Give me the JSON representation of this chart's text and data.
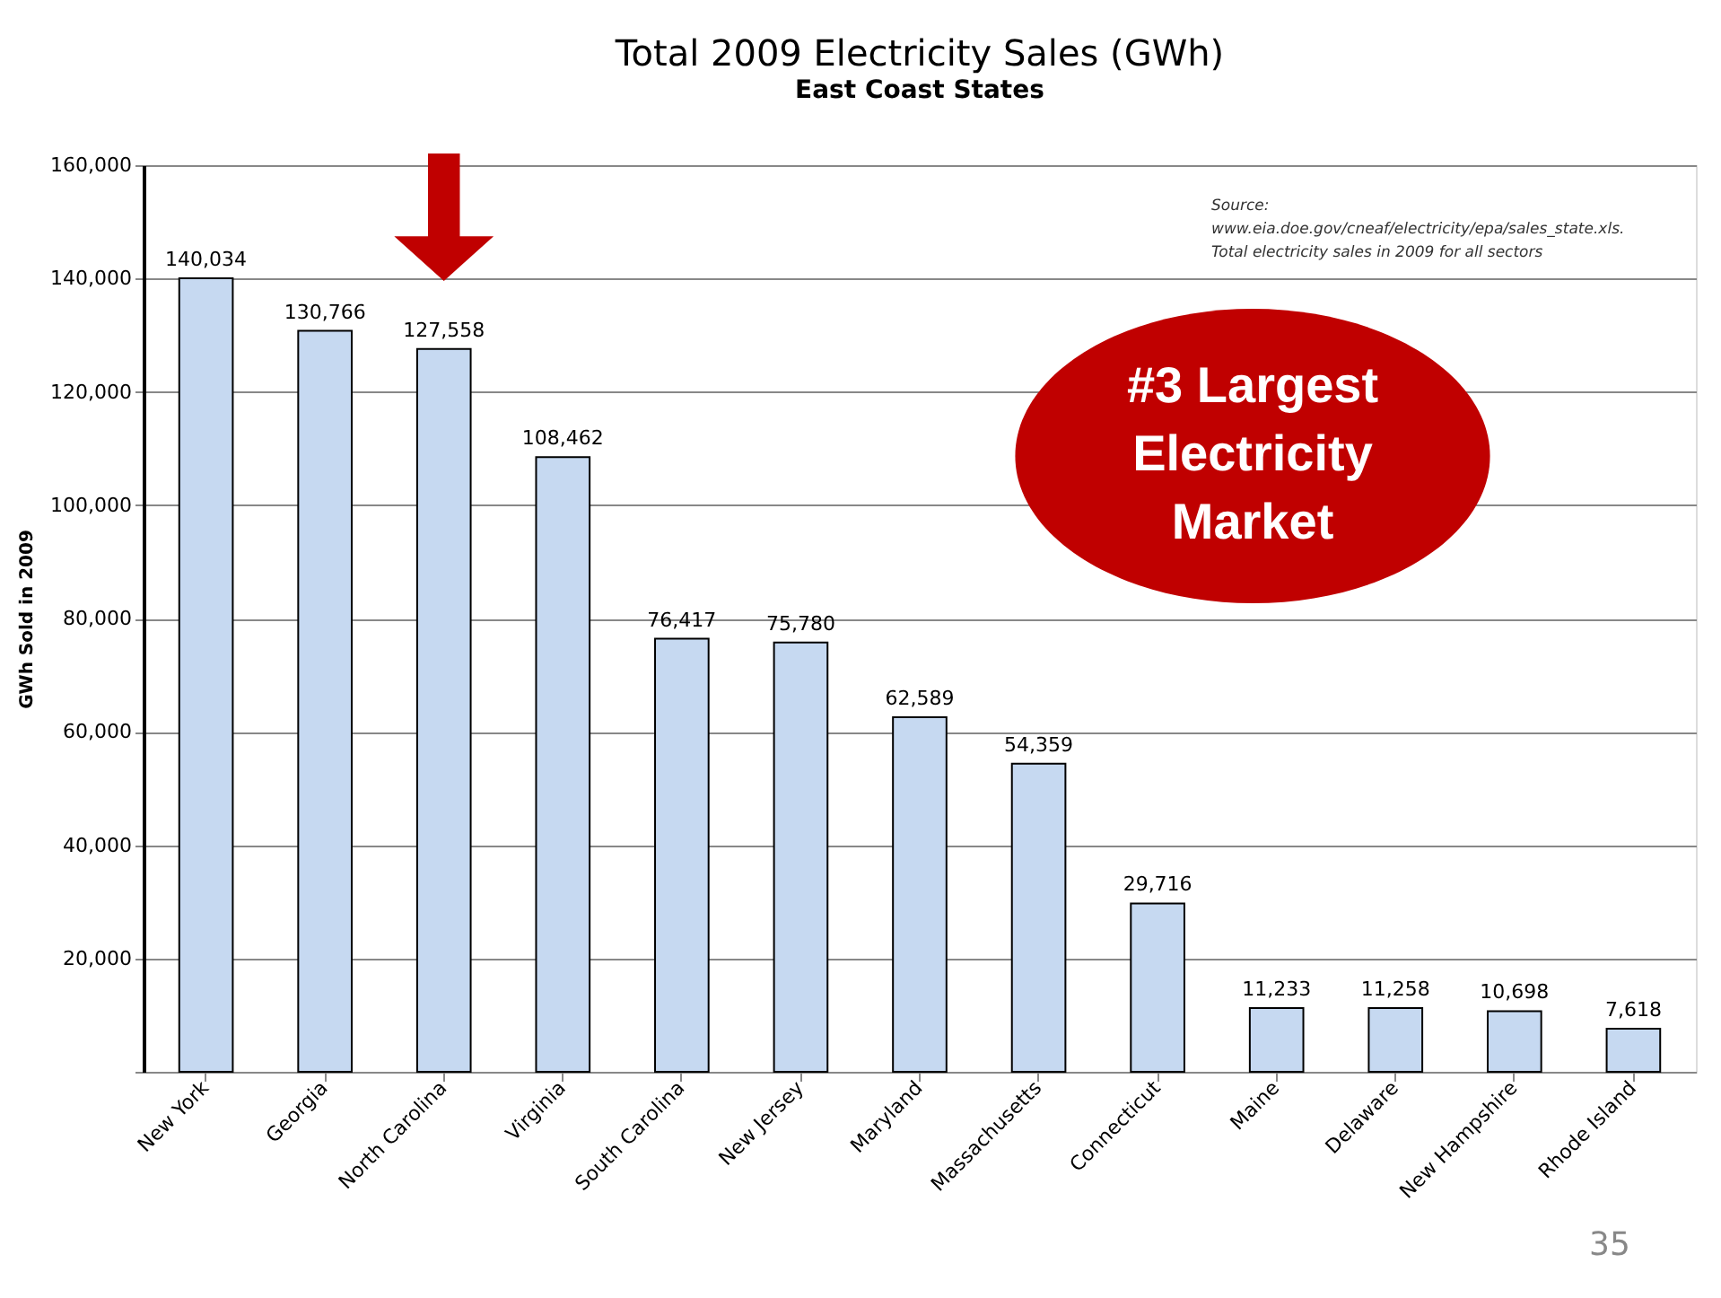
{
  "chart_data": {
    "type": "bar",
    "title": "Total 2009 Electricity Sales (GWh)",
    "subtitle": "East Coast States",
    "ylabel": "GWh Sold in 2009",
    "categories": [
      "New York",
      "Georgia",
      "North Carolina",
      "Virginia",
      "South Carolina",
      "New Jersey",
      "Maryland",
      "Massachusetts",
      "Connecticut",
      "Maine",
      "Delaware",
      "New Hampshire",
      "Rhode Island"
    ],
    "values": [
      140034,
      130766,
      127558,
      108462,
      76417,
      75780,
      62589,
      54359,
      29716,
      11233,
      11258,
      10698,
      7618
    ],
    "color": "#c6d9f1",
    "ylim": [
      0,
      160000
    ],
    "yticks": [
      {
        "value": 0,
        "label": null
      },
      {
        "value": 20000,
        "label": "20,000"
      },
      {
        "value": 40000,
        "label": "40,000"
      },
      {
        "value": 60000,
        "label": "60,000"
      },
      {
        "value": 80000,
        "label": "80,000"
      },
      {
        "value": 100000,
        "label": "100,000"
      },
      {
        "value": 120000,
        "label": "120,000"
      },
      {
        "value": 140000,
        "label": "140,000"
      },
      {
        "value": 160000,
        "label": "160,000"
      }
    ],
    "value_labels": [
      "140,034",
      "130,766",
      "127,558",
      "108,462",
      "76,417",
      "75,780",
      "62,589",
      "54,359",
      "29,716",
      "11,233",
      "11,258",
      "10,698",
      "7,618"
    ],
    "grid": "y",
    "data_labels": true,
    "annotations": [
      "Source:\nwww.eia.doe.gov/cneaf/electricity/epa/sales_state.xls.\nTotal electricity sales in 2009 for all sectors",
      "#3 Largest\nElectricity\nMarket",
      "35"
    ]
  }
}
